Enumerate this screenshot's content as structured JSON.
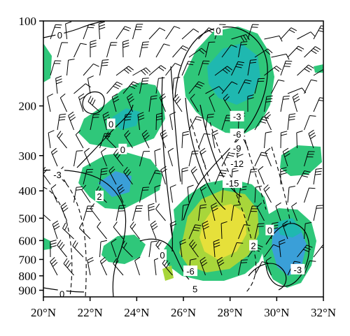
{
  "chart_data": {
    "type": "contour-wind-cross-section",
    "title": "",
    "xlabel": "",
    "ylabel": "",
    "x_ticks": [
      "20°N",
      "22°N",
      "24°N",
      "26°N",
      "28°N",
      "30°N",
      "32°N"
    ],
    "x_values": [
      20,
      22,
      24,
      26,
      28,
      30,
      32
    ],
    "xlim": [
      20,
      32
    ],
    "y_ticks": [
      "100",
      "200",
      "300",
      "400",
      "500",
      "600",
      "700",
      "800",
      "900"
    ],
    "y_values": [
      100,
      200,
      300,
      400,
      500,
      600,
      700,
      800,
      900
    ],
    "ylim": [
      100,
      950
    ],
    "y_scale": "log",
    "y_reversed": true,
    "shading_colors": {
      "level1": "#2fc77a",
      "level2": "#1fb8b0",
      "level3": "#3a9fd8",
      "level4": "#a8d63a",
      "level5": "#e6e03a"
    },
    "contour_labels": [
      {
        "text": "0",
        "lat": 20.7,
        "p": 112
      },
      {
        "text": "0",
        "lat": 27.5,
        "p": 108
      },
      {
        "text": "0",
        "lat": 22.9,
        "p": 232
      },
      {
        "text": "0",
        "lat": 23.4,
        "p": 285
      },
      {
        "text": "-3",
        "lat": 20.6,
        "p": 350
      },
      {
        "text": "2",
        "lat": 22.4,
        "p": 418
      },
      {
        "text": "-3",
        "lat": 28.3,
        "p": 218
      },
      {
        "text": "-6",
        "lat": 28.3,
        "p": 252
      },
      {
        "text": "-9",
        "lat": 28.3,
        "p": 282
      },
      {
        "text": "-12",
        "lat": 28.3,
        "p": 320
      },
      {
        "text": "-15",
        "lat": 28.1,
        "p": 375
      },
      {
        "text": "0",
        "lat": 29.7,
        "p": 552
      },
      {
        "text": "2",
        "lat": 29.0,
        "p": 625
      },
      {
        "text": "0",
        "lat": 25.1,
        "p": 675
      },
      {
        "text": "-6",
        "lat": 26.3,
        "p": 770
      },
      {
        "text": "-3",
        "lat": 30.9,
        "p": 760
      },
      {
        "text": "5",
        "lat": 26.5,
        "p": 890
      },
      {
        "text": "0",
        "lat": 20.8,
        "p": 925
      }
    ]
  }
}
